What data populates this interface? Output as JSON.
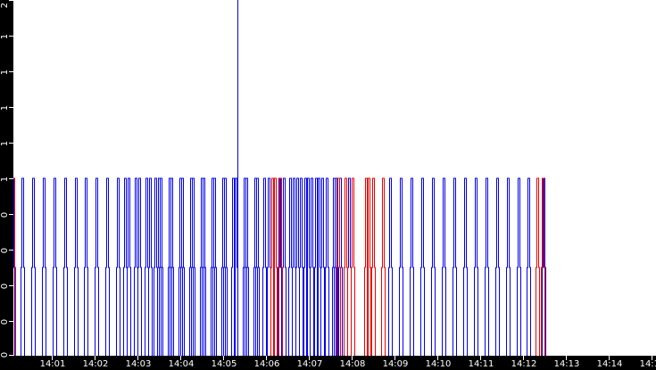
{
  "chart_data": {
    "type": "line",
    "title": "",
    "xlabel": "",
    "ylabel": "",
    "y_tick_labels": [
      "2",
      "1",
      "1",
      "1",
      "1",
      "1",
      "0",
      "0",
      "0",
      "0",
      "0"
    ],
    "x_tick_labels": [
      "14:01",
      "14:02",
      "14:03",
      "14:04",
      "14:05",
      "14:06",
      "14:07",
      "14:08",
      "14:09",
      "14:10",
      "14:11",
      "14:12",
      "14:13",
      "14:14",
      "14:15"
    ],
    "ylim": [
      0,
      2
    ],
    "grid": false,
    "legend": null,
    "colors": {
      "blue": "#0000ee",
      "red": "#ee0000",
      "axis_bg": "#000000",
      "axis_text": "#ffffff",
      "plot_bg": "#ffffff"
    },
    "series": [
      {
        "name": "blue",
        "color": "#0000ee",
        "description": "pulse events reaching value 1 (step to 0.5 then 1)",
        "event_times": [
          "14:00:05",
          "14:00:19",
          "14:00:34",
          "14:00:49",
          "14:01:04",
          "14:01:19",
          "14:01:34",
          "14:01:48",
          "14:02:03",
          "14:02:18",
          "14:02:33",
          "14:02:43",
          "14:02:48",
          "14:02:58",
          "14:03:03",
          "14:03:13",
          "14:03:18",
          "14:03:25",
          "14:03:30",
          "14:03:33",
          "14:03:45",
          "14:03:48",
          "14:04:00",
          "14:04:03",
          "14:04:15",
          "14:04:18",
          "14:04:30",
          "14:04:33",
          "14:04:45",
          "14:04:48",
          "14:05:00",
          "14:05:03",
          "14:05:14",
          "14:05:17",
          "14:05:30",
          "14:05:33",
          "14:05:45",
          "14:05:48",
          "14:05:58",
          "14:06:04",
          "14:06:19",
          "14:06:25",
          "14:06:34",
          "14:06:39",
          "14:06:44",
          "14:06:49",
          "14:06:55",
          "14:06:59",
          "14:07:04",
          "14:07:10",
          "14:07:14",
          "14:07:19",
          "14:07:25",
          "14:07:35",
          "14:07:38",
          "14:07:44",
          "14:07:56",
          "14:08:54",
          "14:09:09",
          "14:09:24",
          "14:09:39",
          "14:09:54",
          "14:10:09",
          "14:10:24",
          "14:10:39",
          "14:10:54",
          "14:11:09",
          "14:11:24",
          "14:11:39",
          "14:11:54",
          "14:12:08",
          "14:12:29"
        ],
        "peak_value": 1,
        "tall_spike": {
          "time": "14:05:20",
          "value": 2
        }
      },
      {
        "name": "red",
        "color": "#ee0000",
        "description": "pulse events reaching value 1 (step to 0.5 then 1)",
        "event_times": [
          "14:00:06",
          "14:06:09",
          "14:06:13",
          "14:06:20",
          "14:07:41",
          "14:07:51",
          "14:08:01",
          "14:08:20",
          "14:08:24",
          "14:08:30",
          "14:08:44",
          "14:12:20",
          "14:12:27"
        ],
        "peak_value": 1
      }
    ]
  }
}
